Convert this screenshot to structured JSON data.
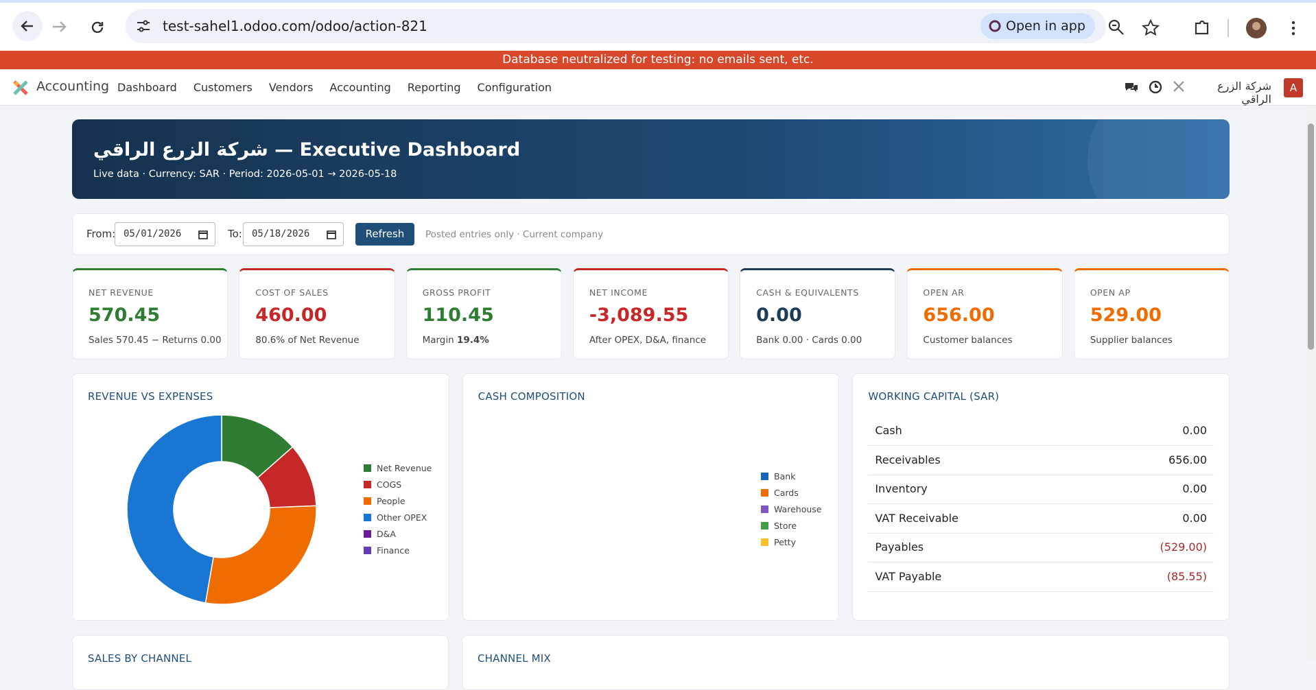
{
  "browser": {
    "url": "test-sahel1.odoo.com/odoo/action-821",
    "open_in_app": "Open in app"
  },
  "banner": "Database neutralized for testing: no emails sent, etc.",
  "navbar": {
    "app": "Accounting",
    "menu": [
      "Dashboard",
      "Customers",
      "Vendors",
      "Accounting",
      "Reporting",
      "Configuration"
    ],
    "company": "شركة الزرع الراقي",
    "avatar": "A"
  },
  "header": {
    "title": "شركة الزرع الراقي — Executive Dashboard",
    "subtitle": "Live data · Currency: SAR · Period: 2026-05-01 → 2026-05-18"
  },
  "filters": {
    "from_label": "From:",
    "from": "05/01/2026",
    "to_label": "To:",
    "to": "05/18/2026",
    "refresh": "Refresh",
    "note": "Posted entries only · Current company"
  },
  "kpis": [
    {
      "label": "NET REVENUE",
      "value": "570.45",
      "sub": "Sales 570.45 − Returns 0.00"
    },
    {
      "label": "COST OF SALES",
      "value": "460.00",
      "sub": "80.6% of Net Revenue"
    },
    {
      "label": "GROSS PROFIT",
      "value": "110.45",
      "sub": "Margin",
      "sub_strong": "19.4%"
    },
    {
      "label": "NET INCOME",
      "value": "-3,089.55",
      "sub": "After OPEX, D&A, finance"
    },
    {
      "label": "CASH & EQUIVALENTS",
      "value": "0.00",
      "sub": "Bank 0.00 · Cards 0.00"
    },
    {
      "label": "OPEN AR",
      "value": "656.00",
      "sub": "Customer balances"
    },
    {
      "label": "OPEN AP",
      "value": "529.00",
      "sub": "Supplier balances"
    }
  ],
  "chart_data": [
    {
      "type": "donut",
      "title": "REVENUE VS EXPENSES",
      "categories": [
        "Net Revenue",
        "COGS",
        "People",
        "Other OPEX",
        "D&A",
        "Finance"
      ],
      "values": [
        570.45,
        460,
        1200,
        2000,
        0,
        0
      ],
      "colors": [
        "#2e7d32",
        "#c62828",
        "#ef6c00",
        "#1976d2",
        "#6a1b9a",
        "#673ab7"
      ]
    },
    {
      "type": "donut",
      "title": "CASH COMPOSITION",
      "categories": [
        "Bank",
        "Cards",
        "Warehouse",
        "Store",
        "Petty"
      ],
      "values": [
        0,
        0,
        0,
        0,
        0
      ],
      "colors": [
        "#1565c0",
        "#ef6c00",
        "#7e57c2",
        "#43a047",
        "#fbc02d"
      ]
    }
  ],
  "working_capital": {
    "title": "WORKING CAPITAL (SAR)",
    "rows": [
      [
        "Cash",
        "0.00"
      ],
      [
        "Receivables",
        "656.00"
      ],
      [
        "Inventory",
        "0.00"
      ],
      [
        "VAT Receivable",
        "0.00"
      ],
      [
        "Payables",
        "(529.00)"
      ],
      [
        "VAT Payable",
        "(85.55)"
      ]
    ]
  },
  "lower_cards": [
    "SALES BY CHANNEL",
    "CHANNEL MIX"
  ]
}
